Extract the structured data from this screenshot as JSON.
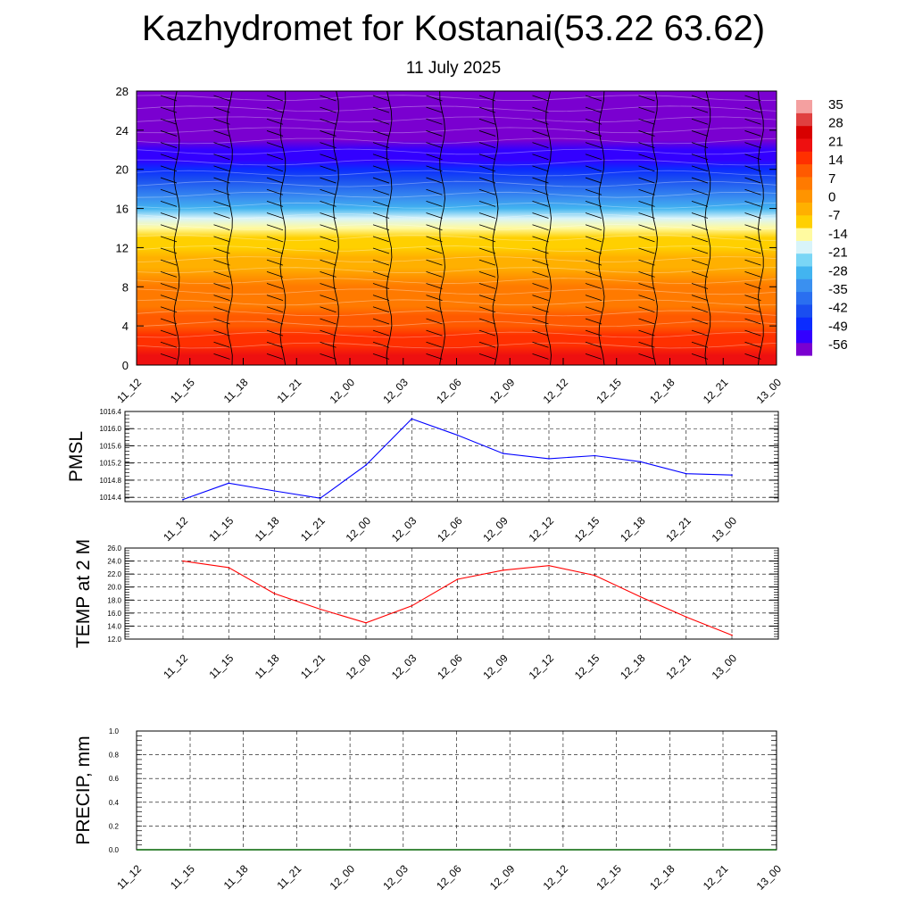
{
  "header": {
    "title": "Kazhydromet for Kostanai(53.22 63.62)",
    "date": "11 July 2025"
  },
  "colors": {
    "pmsl_line": "#0000ff",
    "temp_line": "#ff0000",
    "precip_line": "#006400",
    "colorbar": [
      "#7a00d0",
      "#3300ff",
      "#0b2cff",
      "#1a4ef0",
      "#2a6ff0",
      "#3a90f0",
      "#42b4f0",
      "#7ad6f6",
      "#d8f4fa",
      "#fffaa0",
      "#ffd000",
      "#ffb000",
      "#ff9400",
      "#ff7a00",
      "#ff5a00",
      "#ff3000",
      "#ee1010",
      "#d80000",
      "#e04040",
      "#f4a0a0"
    ]
  },
  "chart_data": [
    {
      "type": "heatmap",
      "title": "Kazhydromet for Kostanai(53.22 63.62)",
      "subtitle": "11 July 2025",
      "x": [
        "11_12",
        "11_15",
        "11_18",
        "11_21",
        "12_00",
        "12_03",
        "12_06",
        "12_09",
        "12_12",
        "12_15",
        "12_18",
        "12_21",
        "13_00"
      ],
      "y_ticks": [
        0,
        4,
        8,
        12,
        16,
        20,
        24,
        28
      ],
      "ylim": [
        0,
        28
      ],
      "levels": [
        0,
        1,
        2,
        3,
        4,
        5,
        6,
        7,
        8,
        9,
        10,
        11,
        12,
        13,
        14,
        15,
        16,
        17,
        18,
        19,
        20,
        21,
        22,
        23,
        24,
        25,
        26,
        27,
        28
      ],
      "values_by_level": [
        22,
        21,
        18,
        15,
        12,
        10,
        8,
        6,
        4,
        1,
        -2,
        -5,
        -8,
        -11,
        -15,
        -20,
        -26,
        -32,
        -38,
        -44,
        -49,
        -53,
        -55,
        -56,
        -57,
        -57,
        -58,
        -58,
        -58
      ],
      "colorbar_labels": [
        "35",
        "28",
        "21",
        "14",
        "7",
        "0",
        "-7",
        "-14",
        "-21",
        "-28",
        "-35",
        "-42",
        "-49",
        "-56"
      ],
      "overlay": "wind barbs",
      "grid": false
    },
    {
      "type": "line",
      "ylabel": "PMSL",
      "x": [
        "11_12",
        "11_15",
        "11_18",
        "11_21",
        "12_00",
        "12_03",
        "12_06",
        "12_09",
        "12_12",
        "12_15",
        "12_18",
        "12_21",
        "13_00"
      ],
      "y": [
        1014.35,
        1014.73,
        1014.55,
        1014.38,
        1015.15,
        1016.23,
        1015.85,
        1015.42,
        1015.3,
        1015.37,
        1015.23,
        1014.95,
        1014.92
      ],
      "ylim": [
        1014.3,
        1016.4
      ],
      "y_ticks": [
        "1014.4",
        "1014.8",
        "1015.2",
        "1015.6",
        "1016.0",
        "1016.4"
      ],
      "grid": true
    },
    {
      "type": "line",
      "ylabel": "TEMP at 2 M",
      "x": [
        "11_12",
        "11_15",
        "11_18",
        "11_21",
        "12_00",
        "12_03",
        "12_06",
        "12_09",
        "12_12",
        "12_15",
        "12_18",
        "12_21",
        "13_00"
      ],
      "y": [
        24.0,
        23.0,
        19.0,
        16.6,
        14.5,
        17.1,
        21.2,
        22.6,
        23.3,
        21.8,
        18.5,
        15.4,
        12.6
      ],
      "ylim": [
        12.0,
        26.0
      ],
      "y_ticks": [
        "12.0",
        "14.0",
        "16.0",
        "18.0",
        "20.0",
        "22.0",
        "24.0",
        "26.0"
      ],
      "grid": true
    },
    {
      "type": "line",
      "ylabel": "PRECIP, mm",
      "x": [
        "11_12",
        "11_15",
        "11_18",
        "11_21",
        "12_00",
        "12_03",
        "12_06",
        "12_09",
        "12_12",
        "12_15",
        "12_18",
        "12_21",
        "13_00"
      ],
      "y": [
        0,
        0,
        0,
        0,
        0,
        0,
        0,
        0,
        0,
        0,
        0,
        0,
        0
      ],
      "ylim": [
        0.0,
        1.0
      ],
      "y_ticks": [
        "0.0",
        "0.2",
        "0.4",
        "0.6",
        "0.8",
        "1.0"
      ],
      "grid": true
    }
  ]
}
